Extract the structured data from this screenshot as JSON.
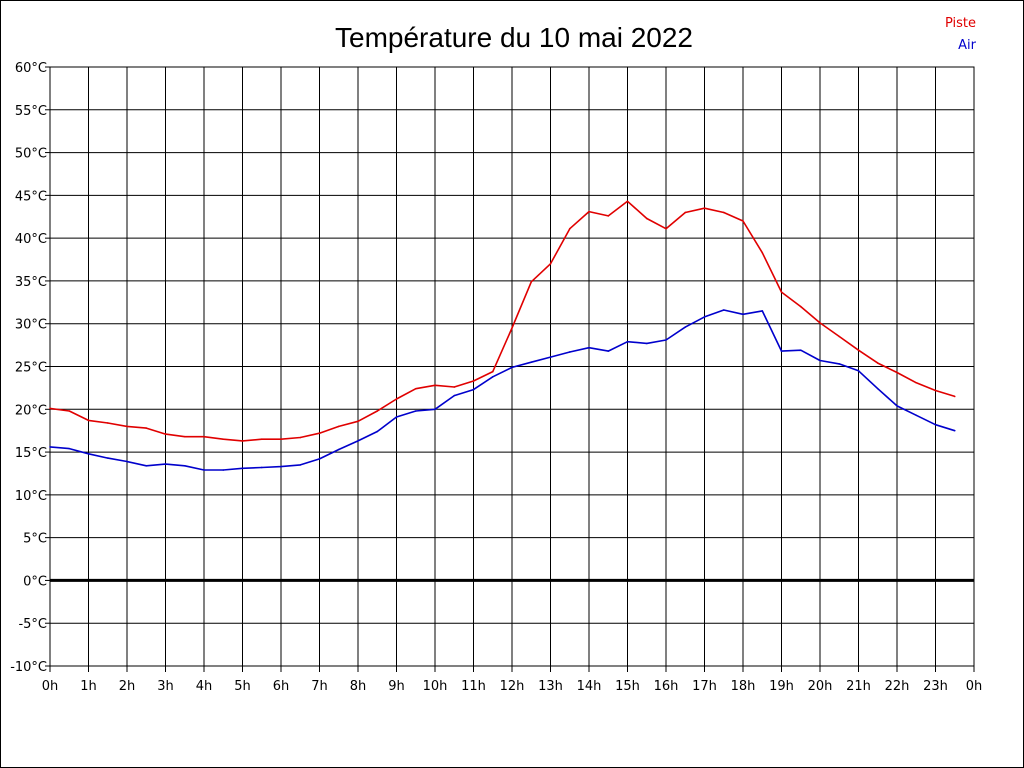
{
  "chart_data": {
    "type": "line",
    "title": "Température du 10 mai 2022",
    "xlabel": "",
    "ylabel": "",
    "x_ticks": [
      "0h",
      "1h",
      "2h",
      "3h",
      "4h",
      "5h",
      "6h",
      "7h",
      "8h",
      "9h",
      "10h",
      "11h",
      "12h",
      "13h",
      "14h",
      "15h",
      "16h",
      "17h",
      "18h",
      "19h",
      "20h",
      "21h",
      "22h",
      "23h",
      "0h"
    ],
    "y_ticks": [
      "-10°C",
      "-5°C",
      "0°C",
      "5°C",
      "10°C",
      "15°C",
      "20°C",
      "25°C",
      "30°C",
      "35°C",
      "40°C",
      "45°C",
      "50°C",
      "55°C",
      "60°C"
    ],
    "xlim": [
      0,
      24
    ],
    "ylim": [
      -10,
      60
    ],
    "grid": true,
    "legend_position": "top-right",
    "zero_line": true,
    "x": [
      0,
      0.5,
      1,
      1.5,
      2,
      2.5,
      3,
      3.5,
      4,
      4.5,
      5,
      5.5,
      6,
      6.5,
      7,
      7.5,
      8,
      8.5,
      9,
      9.5,
      10,
      10.5,
      11,
      11.5,
      12,
      12.5,
      13,
      13.5,
      14,
      14.5,
      15,
      15.5,
      16,
      16.5,
      17,
      17.5,
      18,
      18.5,
      19,
      19.5,
      20,
      20.5,
      21,
      21.5,
      22,
      22.5,
      23,
      23.5
    ],
    "series": [
      {
        "name": "Piste",
        "color": "#e00000",
        "values": [
          20.1,
          19.8,
          18.7,
          18.4,
          18.0,
          17.8,
          17.1,
          16.8,
          16.8,
          16.5,
          16.3,
          16.5,
          16.5,
          16.7,
          17.2,
          18.0,
          18.6,
          19.8,
          21.2,
          22.4,
          22.8,
          22.6,
          23.3,
          24.4,
          29.5,
          34.9,
          37.0,
          41.1,
          43.1,
          42.6,
          44.3,
          42.3,
          41.1,
          43.0,
          43.5,
          43.0,
          42.0,
          38.3,
          33.7,
          32.0,
          30.1,
          28.5,
          26.9,
          25.4,
          24.3,
          23.1,
          22.2,
          21.5
        ]
      },
      {
        "name": "Air",
        "color": "#0000cc",
        "values": [
          15.6,
          15.4,
          14.8,
          14.3,
          13.9,
          13.4,
          13.6,
          13.4,
          12.9,
          12.9,
          13.1,
          13.2,
          13.3,
          13.5,
          14.2,
          15.3,
          16.3,
          17.4,
          19.1,
          19.8,
          20.0,
          21.6,
          22.3,
          23.8,
          24.9,
          25.5,
          26.1,
          26.7,
          27.2,
          26.8,
          27.9,
          27.7,
          28.1,
          29.6,
          30.8,
          31.6,
          31.1,
          31.5,
          26.8,
          26.9,
          25.7,
          25.3,
          24.5,
          22.4,
          20.4,
          19.3,
          18.2,
          17.5
        ]
      }
    ]
  }
}
